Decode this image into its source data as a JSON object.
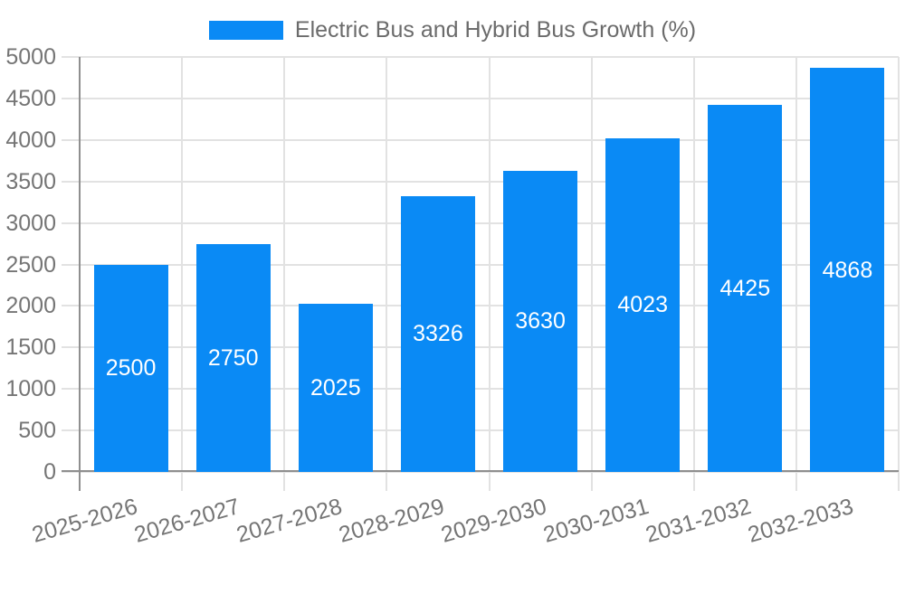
{
  "chart_data": {
    "type": "bar",
    "legend": "Electric Bus and Hybrid Bus Growth (%)",
    "legend_position": "top-center",
    "categories": [
      "2025-2026",
      "2026-2027",
      "2027-2028",
      "2028-2029",
      "2029-2030",
      "2030-2031",
      "2031-2032",
      "2032-2033"
    ],
    "values": [
      2500,
      2750,
      2025,
      3326,
      3630,
      4023,
      4425,
      4868
    ],
    "xlabel": "",
    "ylabel": "",
    "ylim": [
      0,
      5000
    ],
    "ytick_step": 500,
    "grid": true,
    "bar_labels_inside": true,
    "colors": {
      "bar": "#0a8af5",
      "bar_label": "#ffffff",
      "tick_label": "#757575",
      "legend_text": "#6b6b6b",
      "gridline": "#e2e2e2",
      "axis_line": "#8f8f8f",
      "background": "#ffffff"
    }
  }
}
